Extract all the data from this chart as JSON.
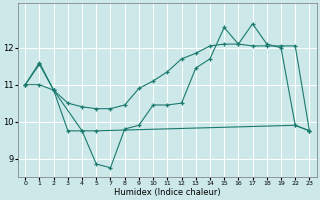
{
  "xlabel": "Humidex (Indice chaleur)",
  "bg_color": "#cce8e8",
  "grid_color": "#ffffff",
  "line_color": "#1a7a6e",
  "ylim": [
    8.5,
    13.2
  ],
  "yticks": [
    9,
    10,
    11,
    12
  ],
  "xlim": [
    -0.5,
    20.5
  ],
  "xtick_positions": [
    0,
    1,
    2,
    3,
    4,
    5,
    6,
    7,
    8,
    9,
    10,
    11,
    12,
    13,
    14,
    15,
    16,
    17,
    18,
    19,
    20
  ],
  "xtick_labels": [
    "0",
    "1",
    "2",
    "3",
    "4",
    "5",
    "7",
    "8",
    "9",
    "10",
    "11",
    "12",
    "13",
    "14",
    "15",
    "16",
    "17",
    "18",
    "19",
    "22",
    "23"
  ],
  "line1_x": [
    0,
    1,
    2,
    3,
    4,
    5,
    19,
    20
  ],
  "line1_y": [
    11.0,
    11.55,
    10.85,
    9.75,
    9.75,
    9.75,
    9.9,
    9.75
  ],
  "line2_x": [
    0,
    1,
    2,
    3,
    4,
    5,
    6,
    7,
    8,
    9,
    10,
    11,
    12,
    13,
    14,
    15,
    16,
    17,
    18,
    19,
    20
  ],
  "line2_y": [
    11.0,
    11.0,
    10.85,
    10.5,
    10.4,
    10.35,
    10.35,
    10.45,
    10.9,
    11.1,
    11.35,
    11.7,
    11.85,
    12.05,
    12.1,
    12.1,
    12.05,
    12.05,
    12.05,
    12.05,
    9.75
  ],
  "line3_x": [
    0,
    1,
    2,
    4,
    5,
    6,
    7,
    8,
    9,
    10,
    11,
    12,
    13,
    14,
    15,
    16,
    17,
    18,
    19,
    20
  ],
  "line3_y": [
    11.0,
    11.6,
    10.85,
    9.75,
    8.85,
    8.75,
    9.8,
    9.9,
    10.45,
    10.45,
    10.5,
    11.45,
    11.7,
    12.55,
    12.1,
    12.65,
    12.1,
    12.0,
    9.9,
    9.75
  ]
}
